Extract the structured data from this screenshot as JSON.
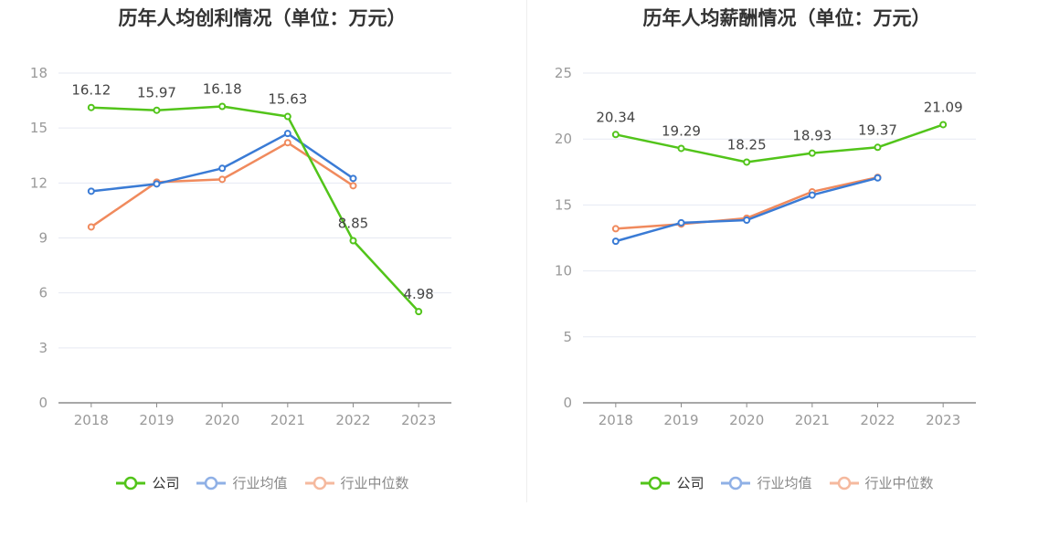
{
  "charts": [
    {
      "title": "历年人均创利情况（单位：万元）",
      "legend": [
        "公司",
        "行业均值",
        "行业中位数"
      ]
    },
    {
      "title": "历年人均薪酬情况（单位：万元）",
      "legend": [
        "公司",
        "行业均值",
        "行业中位数"
      ]
    }
  ],
  "colors": {
    "company": "#52c41a",
    "industry_avg": "#3a7bd5",
    "industry_median": "#f08a5d"
  },
  "chart_data": [
    {
      "type": "line",
      "title": "历年人均创利情况（单位：万元）",
      "categories": [
        "2018",
        "2019",
        "2020",
        "2021",
        "2022",
        "2023"
      ],
      "ylim": [
        0,
        18
      ],
      "yticks": [
        0,
        3,
        6,
        9,
        12,
        15,
        18
      ],
      "grid": true,
      "legend_position": "bottom",
      "series": [
        {
          "name": "公司",
          "values": [
            16.12,
            15.97,
            16.18,
            15.63,
            8.85,
            4.98
          ],
          "labels": [
            "16.12",
            "15.97",
            "16.18",
            "15.63",
            "8.85",
            "4.98"
          ]
        },
        {
          "name": "行业均值",
          "values": [
            11.55,
            11.95,
            12.8,
            14.7,
            12.25,
            null
          ]
        },
        {
          "name": "行业中位数",
          "values": [
            9.6,
            12.05,
            12.2,
            14.2,
            11.85,
            null
          ]
        }
      ]
    },
    {
      "type": "line",
      "title": "历年人均薪酬情况（单位：万元）",
      "categories": [
        "2018",
        "2019",
        "2020",
        "2021",
        "2022",
        "2023"
      ],
      "ylim": [
        0,
        25
      ],
      "yticks": [
        0,
        5,
        10,
        15,
        20,
        25
      ],
      "grid": true,
      "legend_position": "bottom",
      "series": [
        {
          "name": "公司",
          "values": [
            20.34,
            19.29,
            18.25,
            18.93,
            19.37,
            21.09
          ],
          "labels": [
            "20.34",
            "19.29",
            "18.25",
            "18.93",
            "19.37",
            "21.09"
          ]
        },
        {
          "name": "行业均值",
          "values": [
            12.25,
            13.65,
            13.85,
            15.75,
            17.05,
            null
          ]
        },
        {
          "name": "行业中位数",
          "values": [
            13.2,
            13.55,
            14.0,
            16.0,
            17.1,
            null
          ]
        }
      ]
    }
  ]
}
